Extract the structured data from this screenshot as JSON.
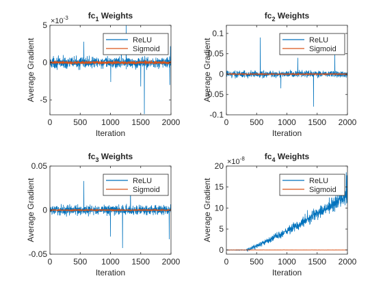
{
  "figure": {
    "colors": {
      "relu": "#0072BD",
      "sigmoid": "#D95319",
      "axis": "#262626",
      "background": "#ffffff"
    }
  },
  "chart_data": [
    {
      "type": "line",
      "title_base": "fc",
      "title_sub": "1",
      "title_suffix": " Weights",
      "xlabel": "Iteration",
      "ylabel": "Average Gradient",
      "xlim": [
        0,
        2000
      ],
      "ylim": [
        -7,
        5
      ],
      "y_exponent": "-3",
      "xticks": [
        "0",
        "500",
        "1000",
        "1500",
        "2000"
      ],
      "yticks": [
        {
          "value": 5,
          "label": "5"
        },
        {
          "value": 0,
          "label": "0"
        },
        {
          "value": -5,
          "label": "-5"
        }
      ],
      "grid": false,
      "legend_position": "top-right",
      "series": [
        {
          "name": "ReLU",
          "color": "#0072BD",
          "shape": "noise",
          "amplitude": 1.1,
          "spikes": [
            [
              560,
              2.8
            ],
            [
              1180,
              2.5
            ],
            [
              1260,
              5.0
            ],
            [
              1560,
              -6.9
            ],
            [
              1980,
              -3.0
            ],
            [
              1990,
              2.2
            ],
            [
              1500,
              -3.2
            ],
            [
              1005,
              -2.6
            ]
          ]
        },
        {
          "name": "Sigmoid",
          "color": "#D95319",
          "shape": "noise",
          "amplitude": 0.3,
          "spikes": []
        }
      ]
    },
    {
      "type": "line",
      "title_base": "fc",
      "title_sub": "2",
      "title_suffix": " Weights",
      "xlabel": "Iteration",
      "ylabel": "Average Gradient",
      "xlim": [
        0,
        2000
      ],
      "ylim": [
        -0.1,
        0.12
      ],
      "y_exponent": "",
      "xticks": [
        "0",
        "500",
        "1000",
        "1500",
        "2000"
      ],
      "yticks": [
        {
          "value": 0.1,
          "label": "0.1"
        },
        {
          "value": 0.05,
          "label": "0.05"
        },
        {
          "value": 0,
          "label": "0"
        },
        {
          "value": -0.05,
          "label": "-0.05"
        },
        {
          "value": -0.1,
          "label": "-0.1"
        }
      ],
      "grid": false,
      "legend_position": "top-right",
      "series": [
        {
          "name": "ReLU",
          "color": "#0072BD",
          "shape": "noise",
          "amplitude": 0.012,
          "spikes": [
            [
              560,
              0.09
            ],
            [
              1440,
              -0.08
            ],
            [
              1180,
              0.04
            ],
            [
              900,
              -0.035
            ],
            [
              1790,
              0.05
            ]
          ]
        },
        {
          "name": "Sigmoid",
          "color": "#D95319",
          "shape": "noise",
          "amplitude": 0.0012,
          "spikes": []
        }
      ]
    },
    {
      "type": "line",
      "title_base": "fc",
      "title_sub": "3",
      "title_suffix": " Weights",
      "xlabel": "Iteration",
      "ylabel": "Average Gradient",
      "xlim": [
        0,
        2000
      ],
      "ylim": [
        -0.05,
        0.05
      ],
      "y_exponent": "",
      "xticks": [
        "0",
        "500",
        "1000",
        "1500",
        "2000"
      ],
      "yticks": [
        {
          "value": 0.05,
          "label": "0.05"
        },
        {
          "value": 0,
          "label": "0"
        },
        {
          "value": -0.05,
          "label": "-0.05"
        }
      ],
      "grid": false,
      "legend_position": "top-right",
      "series": [
        {
          "name": "ReLU",
          "color": "#0072BD",
          "shape": "noise",
          "amplitude": 0.008,
          "spikes": [
            [
              560,
              0.033
            ],
            [
              1200,
              -0.043
            ],
            [
              1330,
              0.028
            ],
            [
              1970,
              -0.033
            ],
            [
              1000,
              -0.03
            ]
          ]
        },
        {
          "name": "Sigmoid",
          "color": "#D95319",
          "shape": "noise",
          "amplitude": 0.0008,
          "spikes": []
        }
      ]
    },
    {
      "type": "line",
      "title_base": "fc",
      "title_sub": "4",
      "title_suffix": " Weights",
      "xlabel": "Iteration",
      "ylabel": "Average Gradient",
      "xlim": [
        0,
        2000
      ],
      "ylim": [
        -1,
        20
      ],
      "y_exponent": "-8",
      "xticks": [
        "0",
        "500",
        "1000",
        "1500",
        "2000"
      ],
      "yticks": [
        {
          "value": 20,
          "label": "20"
        },
        {
          "value": 15,
          "label": "15"
        },
        {
          "value": 10,
          "label": "10"
        },
        {
          "value": 5,
          "label": "5"
        },
        {
          "value": 0,
          "label": "0"
        }
      ],
      "grid": false,
      "legend_position": "top-right",
      "series": [
        {
          "name": "ReLU",
          "color": "#0072BD",
          "shape": "ramp",
          "start_x": 330,
          "end_value": 13,
          "amplitude": 2.2,
          "spikes": [
            [
              1700,
              12.5
            ],
            [
              1980,
              18.5
            ],
            [
              1990,
              17.8
            ],
            [
              1340,
              9.5
            ]
          ]
        },
        {
          "name": "Sigmoid",
          "color": "#D95319",
          "shape": "flat",
          "value": 0,
          "spikes": []
        }
      ]
    }
  ]
}
